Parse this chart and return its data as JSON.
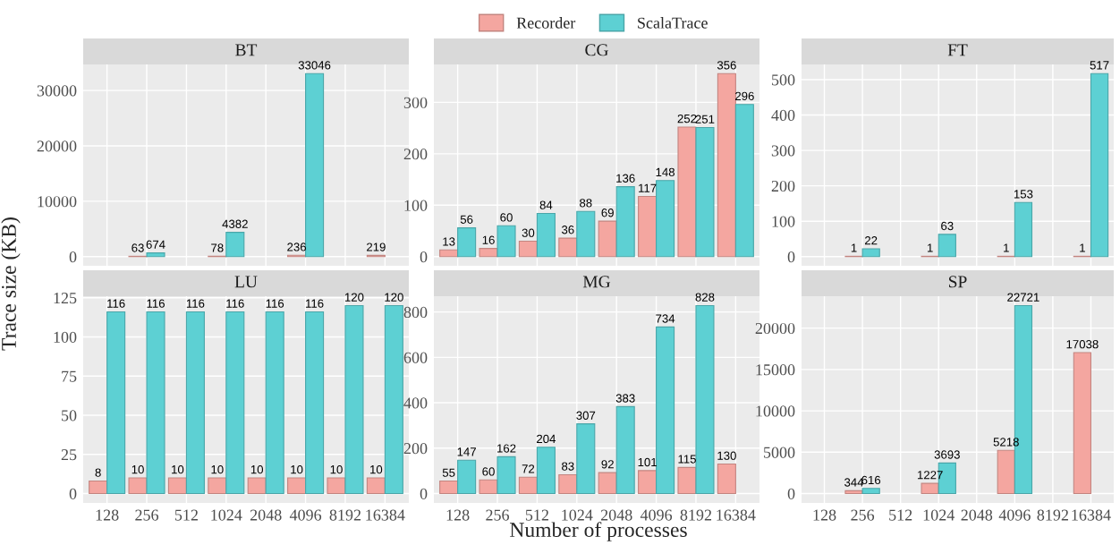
{
  "chart_data": [
    {
      "type": "bar",
      "title": "BT",
      "categories": [
        "128",
        "256",
        "512",
        "1024",
        "2048",
        "4096",
        "8192",
        "16384"
      ],
      "series": [
        {
          "name": "Recorder",
          "color": "#f4a6a0",
          "values": [
            null,
            63,
            null,
            78,
            null,
            236,
            null,
            219
          ]
        },
        {
          "name": "ScalaTrace",
          "color": "#5dd0d3",
          "values": [
            null,
            674,
            null,
            4382,
            null,
            33046,
            null,
            null
          ]
        }
      ],
      "ylim": [
        -1652,
        34698
      ],
      "yticks": [
        0,
        10000,
        20000,
        30000
      ],
      "grid": true,
      "data_labels": true,
      "legend": "top",
      "tick_labels": "y",
      "ylabel": "Trace size (KB)"
    },
    {
      "type": "bar",
      "title": "CG",
      "categories": [
        "128",
        "256",
        "512",
        "1024",
        "2048",
        "4096",
        "8192",
        "16384"
      ],
      "series": [
        {
          "name": "Recorder",
          "color": "#f4a6a0",
          "values": [
            13,
            16,
            30,
            36,
            69,
            117,
            252,
            356
          ]
        },
        {
          "name": "ScalaTrace",
          "color": "#5dd0d3",
          "values": [
            56,
            60,
            84,
            88,
            136,
            148,
            251,
            296
          ]
        }
      ],
      "ylim": [
        -17.8,
        373.8
      ],
      "yticks": [
        0,
        100,
        200,
        300
      ],
      "grid": true,
      "data_labels": true,
      "tick_labels": "y"
    },
    {
      "type": "bar",
      "title": "FT",
      "categories": [
        "128",
        "256",
        "512",
        "1024",
        "2048",
        "4096",
        "8192",
        "16384"
      ],
      "series": [
        {
          "name": "Recorder",
          "color": "#f4a6a0",
          "values": [
            null,
            1,
            null,
            1,
            null,
            1,
            null,
            1
          ]
        },
        {
          "name": "ScalaTrace",
          "color": "#5dd0d3",
          "values": [
            null,
            22,
            null,
            63,
            null,
            153,
            null,
            517
          ]
        }
      ],
      "ylim": [
        -25.85,
        542.85
      ],
      "yticks": [
        0,
        100,
        200,
        300,
        400,
        500
      ],
      "grid": true,
      "data_labels": true,
      "tick_labels": "y"
    },
    {
      "type": "bar",
      "title": "LU",
      "categories": [
        "128",
        "256",
        "512",
        "1024",
        "2048",
        "4096",
        "8192",
        "16384"
      ],
      "series": [
        {
          "name": "Recorder",
          "color": "#f4a6a0",
          "values": [
            8,
            10,
            10,
            10,
            10,
            10,
            10,
            10
          ]
        },
        {
          "name": "ScalaTrace",
          "color": "#5dd0d3",
          "values": [
            116,
            116,
            116,
            116,
            116,
            116,
            120,
            120
          ]
        }
      ],
      "ylim": [
        -6,
        126
      ],
      "yticks": [
        0,
        25,
        50,
        75,
        100,
        125
      ],
      "grid": true,
      "data_labels": true
    },
    {
      "type": "bar",
      "title": "MG",
      "categories": [
        "128",
        "256",
        "512",
        "1024",
        "2048",
        "4096",
        "8192",
        "16384"
      ],
      "series": [
        {
          "name": "Recorder",
          "color": "#f4a6a0",
          "values": [
            55,
            60,
            72,
            83,
            92,
            101,
            115,
            130
          ]
        },
        {
          "name": "ScalaTrace",
          "color": "#5dd0d3",
          "values": [
            147,
            162,
            204,
            307,
            383,
            734,
            828,
            null
          ]
        }
      ],
      "ylim": [
        -41.4,
        869.4
      ],
      "yticks": [
        0,
        200,
        400,
        600,
        800
      ],
      "grid": true,
      "data_labels": true,
      "xlabel": "Number of processes"
    },
    {
      "type": "bar",
      "title": "SP",
      "categories": [
        "128",
        "256",
        "512",
        "1024",
        "2048",
        "4096",
        "8192",
        "16384"
      ],
      "series": [
        {
          "name": "Recorder",
          "color": "#f4a6a0",
          "values": [
            null,
            344,
            null,
            1227,
            null,
            5218,
            null,
            17038
          ]
        },
        {
          "name": "ScalaTrace",
          "color": "#5dd0d3",
          "values": [
            null,
            616,
            null,
            3693,
            null,
            22721,
            null,
            null
          ]
        }
      ],
      "ylim": [
        -1136,
        23857
      ],
      "yticks": [
        0,
        5000,
        10000,
        15000,
        20000
      ],
      "grid": true,
      "data_labels": true
    }
  ]
}
